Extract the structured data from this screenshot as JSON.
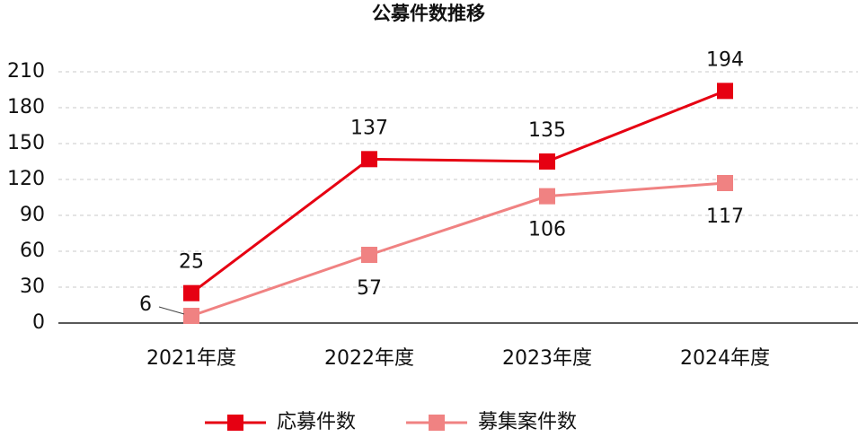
{
  "chart_data": {
    "type": "line",
    "title": "公募件数推移",
    "categories": [
      "2021年度",
      "2022年度",
      "2023年度",
      "2024年度"
    ],
    "series": [
      {
        "name": "応募件数",
        "color": "#e60012",
        "values": [
          25,
          137,
          135,
          194
        ]
      },
      {
        "name": "募集案件数",
        "color": "#f08282",
        "values": [
          6,
          57,
          106,
          117
        ]
      }
    ],
    "ylim": [
      0,
      210
    ],
    "yticks": [
      0,
      30,
      60,
      90,
      120,
      150,
      180,
      210
    ],
    "grid": true,
    "legend": "bottom"
  }
}
